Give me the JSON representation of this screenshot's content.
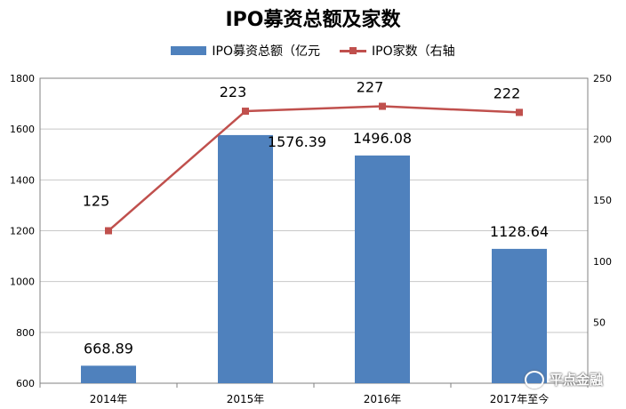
{
  "chart_data": {
    "type": "bar+line",
    "title": "IPO募资总额及家数",
    "categories": [
      "2014年",
      "2015年",
      "2016年",
      "2017年至今"
    ],
    "series": [
      {
        "name": "IPO募资总额（亿元",
        "type": "bar",
        "axis": "left",
        "color": "#4F81BD",
        "values": [
          668.89,
          1576.39,
          1496.08,
          1128.64
        ],
        "labels": [
          "668.89",
          "1576.39",
          "1496.08",
          "1128.64"
        ]
      },
      {
        "name": "IPO家数（右轴",
        "type": "line",
        "axis": "right",
        "color": "#C0504D",
        "values": [
          125,
          223,
          227,
          222
        ],
        "labels": [
          "125",
          "223",
          "227",
          "222"
        ]
      }
    ],
    "y_left": {
      "ylim": [
        600,
        1800
      ],
      "ticks": [
        600,
        800,
        1000,
        1200,
        1400,
        1600,
        1800
      ]
    },
    "y_right": {
      "ylim": [
        0,
        250
      ],
      "ticks": [
        50,
        100,
        150,
        200,
        250
      ]
    },
    "grid": true,
    "legend": "top"
  },
  "watermark": "平点金融"
}
